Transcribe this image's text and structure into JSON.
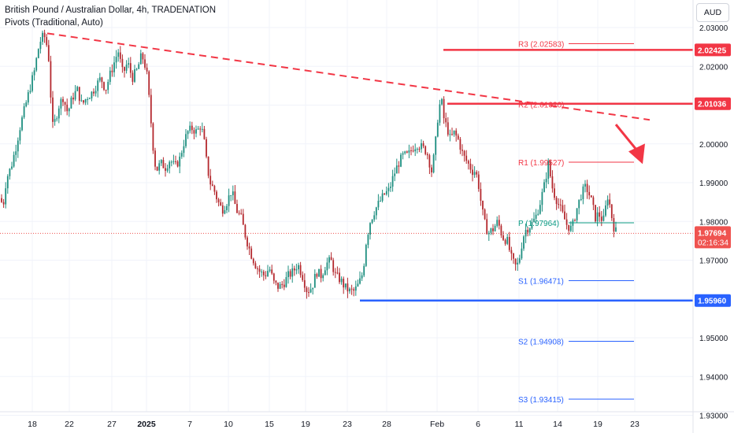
{
  "header": {
    "title": "British Pound / Australian Dollar, 4h, TRADENATION",
    "indicator": "Pivots (Traditional, Auto)",
    "currency": "AUD"
  },
  "colors": {
    "up": "#26a69a",
    "down": "#ef5350",
    "candle_up_body": "#1d8e7f",
    "candle_down_body": "#b4282e",
    "resistance": "#f23645",
    "support": "#2962ff",
    "pivot": "#089981",
    "pivot_s": "#2962ff",
    "axis_text": "#131722"
  },
  "chart_data": {
    "type": "candlestick",
    "symbol": "GBPAUD",
    "timeframe": "4h",
    "y_axis": {
      "ylim": [
        1.93,
        2.034
      ],
      "ticks": [
        "2.03000",
        "2.02000",
        "2.01000",
        "2.00000",
        "1.99000",
        "1.98000",
        "1.97000",
        "1.96000",
        "1.95000",
        "1.94000",
        "1.93000"
      ]
    },
    "x_axis": {
      "ticks": [
        "18",
        "22",
        "27",
        "2025",
        "7",
        "10",
        "15",
        "19",
        "23",
        "28",
        "Feb",
        "6",
        "11",
        "14",
        "19",
        "23"
      ]
    },
    "price_path": [
      [
        0,
        1.986
      ],
      [
        4,
        1.984
      ],
      [
        8,
        1.991
      ],
      [
        14,
        1.994
      ],
      [
        20,
        1.999
      ],
      [
        25,
        2.004
      ],
      [
        30,
        2.008
      ],
      [
        35,
        2.012
      ],
      [
        40,
        2.016
      ],
      [
        44,
        2.019
      ],
      [
        48,
        2.024
      ],
      [
        52,
        2.027
      ],
      [
        56,
        2.028
      ],
      [
        60,
        2.025
      ],
      [
        63,
        2.02
      ],
      [
        66,
        2.004
      ],
      [
        70,
        2.006
      ],
      [
        75,
        2.01
      ],
      [
        80,
        2.012
      ],
      [
        86,
        2.008
      ],
      [
        92,
        2.012
      ],
      [
        98,
        2.014
      ],
      [
        104,
        2.01
      ],
      [
        110,
        2.012
      ],
      [
        116,
        2.013
      ],
      [
        122,
        2.015
      ],
      [
        128,
        2.017
      ],
      [
        134,
        2.014
      ],
      [
        140,
        2.018
      ],
      [
        145,
        2.021
      ],
      [
        150,
        2.024
      ],
      [
        156,
        2.018
      ],
      [
        162,
        2.021
      ],
      [
        168,
        2.017
      ],
      [
        174,
        2.019
      ],
      [
        180,
        2.023
      ],
      [
        186,
        2.019
      ],
      [
        190,
        2.01
      ],
      [
        194,
        2.0
      ],
      [
        198,
        1.993
      ],
      [
        204,
        1.995
      ],
      [
        210,
        1.994
      ],
      [
        216,
        1.996
      ],
      [
        222,
        1.994
      ],
      [
        228,
        1.996
      ],
      [
        233,
        2.0
      ],
      [
        238,
        2.003
      ],
      [
        244,
        2.004
      ],
      [
        250,
        2.003
      ],
      [
        255,
        2.005
      ],
      [
        259,
        2.001
      ],
      [
        263,
        1.994
      ],
      [
        267,
        1.99
      ],
      [
        272,
        1.988
      ],
      [
        277,
        1.985
      ],
      [
        282,
        1.983
      ],
      [
        288,
        1.985
      ],
      [
        294,
        1.988
      ],
      [
        300,
        1.983
      ],
      [
        306,
        1.981
      ],
      [
        312,
        1.976
      ],
      [
        318,
        1.972
      ],
      [
        324,
        1.969
      ],
      [
        330,
        1.967
      ],
      [
        336,
        1.966
      ],
      [
        342,
        1.968
      ],
      [
        348,
        1.964
      ],
      [
        354,
        1.963
      ],
      [
        360,
        1.964
      ],
      [
        366,
        1.966
      ],
      [
        372,
        1.967
      ],
      [
        378,
        1.969
      ],
      [
        384,
        1.966
      ],
      [
        390,
        1.962
      ],
      [
        396,
        1.963
      ],
      [
        402,
        1.967
      ],
      [
        408,
        1.966
      ],
      [
        414,
        1.969
      ],
      [
        420,
        1.97
      ],
      [
        426,
        1.966
      ],
      [
        432,
        1.965
      ],
      [
        438,
        1.963
      ],
      [
        444,
        1.962
      ],
      [
        450,
        1.962
      ],
      [
        456,
        1.964
      ],
      [
        461,
        1.967
      ],
      [
        465,
        1.975
      ],
      [
        470,
        1.98
      ],
      [
        476,
        1.983
      ],
      [
        482,
        1.985
      ],
      [
        488,
        1.987
      ],
      [
        494,
        1.988
      ],
      [
        500,
        1.992
      ],
      [
        506,
        1.995
      ],
      [
        512,
        1.997
      ],
      [
        518,
        1.997
      ],
      [
        524,
        1.999
      ],
      [
        530,
        2.0
      ],
      [
        536,
        1.999
      ],
      [
        542,
        1.998
      ],
      [
        548,
        1.993
      ],
      [
        552,
        1.998
      ],
      [
        556,
        2.007
      ],
      [
        560,
        2.012
      ],
      [
        564,
        2.006
      ],
      [
        568,
        2.004
      ],
      [
        572,
        2.001
      ],
      [
        576,
        2.003
      ],
      [
        582,
        2.001
      ],
      [
        588,
        1.997
      ],
      [
        594,
        1.995
      ],
      [
        600,
        1.993
      ],
      [
        604,
        1.993
      ],
      [
        608,
        1.989
      ],
      [
        612,
        1.983
      ],
      [
        616,
        1.979
      ],
      [
        620,
        1.977
      ],
      [
        626,
        1.978
      ],
      [
        632,
        1.98
      ],
      [
        638,
        1.976
      ],
      [
        644,
        1.975
      ],
      [
        650,
        1.97
      ],
      [
        656,
        1.968
      ],
      [
        660,
        1.971
      ],
      [
        664,
        1.976
      ],
      [
        668,
        1.978
      ],
      [
        674,
        1.979
      ],
      [
        680,
        1.981
      ],
      [
        686,
        1.985
      ],
      [
        692,
        1.99
      ],
      [
        696,
        1.995
      ],
      [
        702,
        1.988
      ],
      [
        708,
        1.985
      ],
      [
        714,
        1.982
      ],
      [
        720,
        1.979
      ],
      [
        726,
        1.978
      ],
      [
        732,
        1.983
      ],
      [
        738,
        1.987
      ],
      [
        744,
        1.989
      ],
      [
        750,
        1.986
      ],
      [
        756,
        1.981
      ],
      [
        760,
        1.982
      ],
      [
        766,
        1.98
      ],
      [
        772,
        1.987
      ],
      [
        776,
        1.982
      ],
      [
        780,
        1.978
      ],
      [
        784,
        1.9769
      ]
    ],
    "last_price": {
      "value": "1.97694",
      "countdown": "02:16:34"
    },
    "pivot_levels": [
      {
        "label": "R3 (2.02583)",
        "value": 2.02583,
        "type": "resistance"
      },
      {
        "label": "R2 (2.01020)",
        "value": 2.0102,
        "type": "resistance"
      },
      {
        "label": "R1 (1.99527)",
        "value": 1.99527,
        "type": "resistance"
      },
      {
        "label": "P (1.97964)",
        "value": 1.97964,
        "type": "pivot"
      },
      {
        "label": "S1 (1.96471)",
        "value": 1.96471,
        "type": "support"
      },
      {
        "label": "S2 (1.94908)",
        "value": 1.94908,
        "type": "support"
      },
      {
        "label": "S3 (1.93415)",
        "value": 1.93415,
        "type": "support"
      }
    ],
    "horizontal_levels": [
      {
        "value": 2.02425,
        "label": "2.02425",
        "color": "resistance"
      },
      {
        "value": 2.01036,
        "label": "2.01036",
        "color": "resistance"
      },
      {
        "value": 1.9596,
        "label": "1.95960",
        "color": "support"
      }
    ],
    "trendline": {
      "from": [
        60,
        2.0285
      ],
      "to": [
        825,
        2.0062
      ]
    },
    "arrow": {
      "from": [
        782,
        2.005
      ],
      "to": [
        816,
        1.9952
      ]
    }
  }
}
